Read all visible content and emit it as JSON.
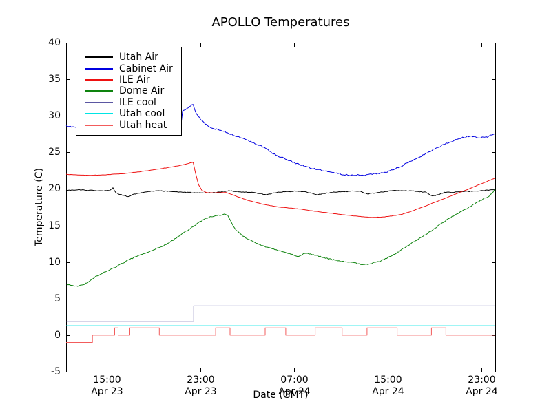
{
  "chart_data": {
    "type": "line",
    "title": "APOLLO Temperatures",
    "xlabel": "Date (GMT)",
    "ylabel": "Temperature (C)",
    "grid": false,
    "legend_position": "upper-left",
    "x_unit": "hours relative to 15:00 Apr 23",
    "xlim": [
      -3.5,
      33.15
    ],
    "ylim": [
      -5,
      40
    ],
    "y_ticks": [
      -5,
      0,
      5,
      10,
      15,
      20,
      25,
      30,
      35,
      40
    ],
    "x_ticks": [
      {
        "t": 0,
        "time": "15:00",
        "date": "Apr 23"
      },
      {
        "t": 8,
        "time": "23:00",
        "date": "Apr 23"
      },
      {
        "t": 16,
        "time": "07:00",
        "date": "Apr 24"
      },
      {
        "t": 24,
        "time": "15:00",
        "date": "Apr 24"
      },
      {
        "t": 32,
        "time": "23:00",
        "date": "Apr 24"
      }
    ],
    "series": [
      {
        "name": "Utah Air",
        "color": "#000000",
        "noise": 0.05,
        "points": [
          [
            -3.5,
            19.8
          ],
          [
            -2.5,
            19.9
          ],
          [
            -1.5,
            19.8
          ],
          [
            0.2,
            19.75
          ],
          [
            0.5,
            20.15
          ],
          [
            0.75,
            19.45
          ],
          [
            1.3,
            19.15
          ],
          [
            1.8,
            18.95
          ],
          [
            2.3,
            19.3
          ],
          [
            3.3,
            19.6
          ],
          [
            4.3,
            19.75
          ],
          [
            5.5,
            19.65
          ],
          [
            7.0,
            19.5
          ],
          [
            8.5,
            19.45
          ],
          [
            9.6,
            19.55
          ],
          [
            10.4,
            19.75
          ],
          [
            11.5,
            19.6
          ],
          [
            12.6,
            19.5
          ],
          [
            13.6,
            19.2
          ],
          [
            14.6,
            19.55
          ],
          [
            16.0,
            19.7
          ],
          [
            17.0,
            19.6
          ],
          [
            17.9,
            19.2
          ],
          [
            19.0,
            19.5
          ],
          [
            20.5,
            19.65
          ],
          [
            21.6,
            19.7
          ],
          [
            22.2,
            19.3
          ],
          [
            23.5,
            19.6
          ],
          [
            24.8,
            19.8
          ],
          [
            26.2,
            19.7
          ],
          [
            27.2,
            19.55
          ],
          [
            27.8,
            19.0
          ],
          [
            28.8,
            19.5
          ],
          [
            30.0,
            19.6
          ],
          [
            31.5,
            19.7
          ],
          [
            33.15,
            19.9
          ]
        ]
      },
      {
        "name": "Cabinet Air",
        "color": "#0000e0",
        "noise": 0.09,
        "points": [
          [
            -3.5,
            28.6
          ],
          [
            -2.8,
            28.45
          ],
          [
            -2.0,
            28.35
          ],
          [
            -1.0,
            28.3
          ],
          [
            0.0,
            28.35
          ],
          [
            1.0,
            28.3
          ],
          [
            2.0,
            28.25
          ],
          [
            3.0,
            28.2
          ],
          [
            4.0,
            28.25
          ],
          [
            5.0,
            28.3
          ],
          [
            6.0,
            28.4
          ],
          [
            6.3,
            28.5
          ],
          [
            6.45,
            30.6
          ],
          [
            6.8,
            31.0
          ],
          [
            7.35,
            31.6
          ],
          [
            7.5,
            30.7
          ],
          [
            7.7,
            30.1
          ],
          [
            8.0,
            29.5
          ],
          [
            8.4,
            28.9
          ],
          [
            9.0,
            28.3
          ],
          [
            9.7,
            28.0
          ],
          [
            10.4,
            27.6
          ],
          [
            11.6,
            26.9
          ],
          [
            12.5,
            26.3
          ],
          [
            13.4,
            25.7
          ],
          [
            14.2,
            24.8
          ],
          [
            15.1,
            24.2
          ],
          [
            16.1,
            23.5
          ],
          [
            17.1,
            23.0
          ],
          [
            18.1,
            22.6
          ],
          [
            19.1,
            22.3
          ],
          [
            20.1,
            22.0
          ],
          [
            20.8,
            21.9
          ],
          [
            21.9,
            21.9
          ],
          [
            22.9,
            22.05
          ],
          [
            23.8,
            22.3
          ],
          [
            24.3,
            22.6
          ],
          [
            25.1,
            23.1
          ],
          [
            26.1,
            23.9
          ],
          [
            27.1,
            24.7
          ],
          [
            28.1,
            25.6
          ],
          [
            29.1,
            26.3
          ],
          [
            30.1,
            26.9
          ],
          [
            31.0,
            27.25
          ],
          [
            31.8,
            27.0
          ],
          [
            32.5,
            27.15
          ],
          [
            33.15,
            27.55
          ]
        ]
      },
      {
        "name": "ILE Air",
        "color": "#ee1111",
        "noise": 0.02,
        "points": [
          [
            -3.5,
            22.0
          ],
          [
            -2.5,
            21.9
          ],
          [
            -1.5,
            21.85
          ],
          [
            -0.5,
            21.9
          ],
          [
            0.5,
            22.0
          ],
          [
            1.5,
            22.1
          ],
          [
            2.5,
            22.3
          ],
          [
            3.5,
            22.5
          ],
          [
            4.5,
            22.75
          ],
          [
            5.5,
            23.0
          ],
          [
            6.5,
            23.3
          ],
          [
            7.35,
            23.65
          ],
          [
            7.55,
            22.2
          ],
          [
            7.8,
            20.6
          ],
          [
            8.1,
            19.8
          ],
          [
            8.5,
            19.5
          ],
          [
            9.0,
            19.45
          ],
          [
            9.6,
            19.5
          ],
          [
            10.2,
            19.5
          ],
          [
            10.7,
            19.2
          ],
          [
            11.2,
            18.9
          ],
          [
            12.0,
            18.45
          ],
          [
            13.2,
            17.95
          ],
          [
            14.3,
            17.6
          ],
          [
            15.5,
            17.4
          ],
          [
            16.5,
            17.25
          ],
          [
            17.5,
            17.0
          ],
          [
            18.5,
            16.8
          ],
          [
            19.5,
            16.6
          ],
          [
            20.5,
            16.4
          ],
          [
            21.5,
            16.25
          ],
          [
            22.5,
            16.1
          ],
          [
            23.5,
            16.15
          ],
          [
            24.3,
            16.3
          ],
          [
            25.1,
            16.5
          ],
          [
            26.1,
            17.0
          ],
          [
            27.1,
            17.6
          ],
          [
            28.1,
            18.25
          ],
          [
            29.0,
            18.8
          ],
          [
            30.0,
            19.45
          ],
          [
            30.9,
            20.0
          ],
          [
            31.8,
            20.6
          ],
          [
            32.5,
            21.05
          ],
          [
            33.15,
            21.5
          ]
        ]
      },
      {
        "name": "Dome Air",
        "color": "#0e830e",
        "noise": 0.07,
        "points": [
          [
            -3.5,
            7.0
          ],
          [
            -3.1,
            6.8
          ],
          [
            -2.4,
            6.7
          ],
          [
            -1.7,
            7.15
          ],
          [
            -1.1,
            7.9
          ],
          [
            -0.5,
            8.4
          ],
          [
            0.1,
            8.85
          ],
          [
            0.7,
            9.3
          ],
          [
            1.2,
            9.75
          ],
          [
            1.8,
            10.25
          ],
          [
            2.4,
            10.7
          ],
          [
            3.0,
            11.1
          ],
          [
            3.6,
            11.45
          ],
          [
            4.2,
            11.8
          ],
          [
            4.8,
            12.2
          ],
          [
            5.4,
            12.75
          ],
          [
            5.9,
            13.3
          ],
          [
            6.5,
            13.95
          ],
          [
            7.1,
            14.55
          ],
          [
            7.7,
            15.25
          ],
          [
            8.3,
            15.9
          ],
          [
            8.8,
            16.2
          ],
          [
            9.4,
            16.35
          ],
          [
            10.0,
            16.5
          ],
          [
            10.3,
            16.45
          ],
          [
            10.55,
            15.6
          ],
          [
            10.9,
            14.65
          ],
          [
            11.3,
            13.9
          ],
          [
            11.7,
            13.45
          ],
          [
            12.4,
            12.85
          ],
          [
            13.2,
            12.25
          ],
          [
            14.0,
            11.85
          ],
          [
            14.8,
            11.5
          ],
          [
            15.7,
            11.05
          ],
          [
            16.3,
            10.75
          ],
          [
            16.9,
            11.2
          ],
          [
            17.5,
            11.05
          ],
          [
            18.2,
            10.75
          ],
          [
            18.9,
            10.45
          ],
          [
            19.8,
            10.15
          ],
          [
            21.0,
            9.9
          ],
          [
            21.9,
            9.65
          ],
          [
            22.6,
            9.8
          ],
          [
            23.2,
            10.05
          ],
          [
            24.0,
            10.6
          ],
          [
            24.8,
            11.3
          ],
          [
            25.4,
            11.95
          ],
          [
            26.0,
            12.6
          ],
          [
            26.6,
            13.15
          ],
          [
            27.1,
            13.65
          ],
          [
            27.8,
            14.4
          ],
          [
            28.5,
            15.2
          ],
          [
            29.1,
            15.85
          ],
          [
            29.7,
            16.4
          ],
          [
            30.3,
            16.95
          ],
          [
            30.8,
            17.4
          ],
          [
            31.4,
            17.95
          ],
          [
            32.0,
            18.5
          ],
          [
            32.6,
            19.0
          ],
          [
            32.95,
            19.5
          ],
          [
            33.1,
            19.95
          ],
          [
            33.15,
            19.9
          ]
        ]
      },
      {
        "name": "ILE cool",
        "color": "#5b57a2",
        "noise": 0,
        "points": [
          [
            -3.5,
            1.9
          ],
          [
            7.4,
            1.9
          ],
          [
            7.4,
            4.0
          ],
          [
            33.15,
            4.0
          ]
        ]
      },
      {
        "name": "Utah cool",
        "color": "#00e5e5",
        "noise": 0,
        "points": [
          [
            -3.5,
            1.3
          ],
          [
            33.15,
            1.3
          ]
        ]
      },
      {
        "name": "Utah heat",
        "color": "#f25c5c",
        "noise": 0,
        "points": [
          [
            -3.5,
            -1.0
          ],
          [
            -1.25,
            -1.0
          ],
          [
            -1.25,
            0.0
          ],
          [
            0.65,
            0.0
          ],
          [
            0.65,
            1.0
          ],
          [
            0.94,
            1.0
          ],
          [
            0.94,
            0.0
          ],
          [
            1.94,
            0.0
          ],
          [
            1.94,
            1.0
          ],
          [
            4.46,
            1.0
          ],
          [
            4.46,
            0.0
          ],
          [
            9.27,
            0.0
          ],
          [
            9.27,
            1.0
          ],
          [
            10.5,
            1.0
          ],
          [
            10.5,
            0.0
          ],
          [
            13.5,
            0.0
          ],
          [
            13.5,
            1.0
          ],
          [
            15.26,
            1.0
          ],
          [
            15.26,
            0.0
          ],
          [
            17.77,
            0.0
          ],
          [
            17.77,
            1.0
          ],
          [
            20.07,
            1.0
          ],
          [
            20.07,
            0.0
          ],
          [
            22.2,
            0.0
          ],
          [
            22.2,
            1.0
          ],
          [
            24.77,
            1.0
          ],
          [
            24.77,
            0.0
          ],
          [
            27.7,
            0.0
          ],
          [
            27.7,
            1.0
          ],
          [
            28.94,
            1.0
          ],
          [
            28.94,
            0.0
          ],
          [
            33.15,
            0.0
          ]
        ]
      }
    ]
  }
}
